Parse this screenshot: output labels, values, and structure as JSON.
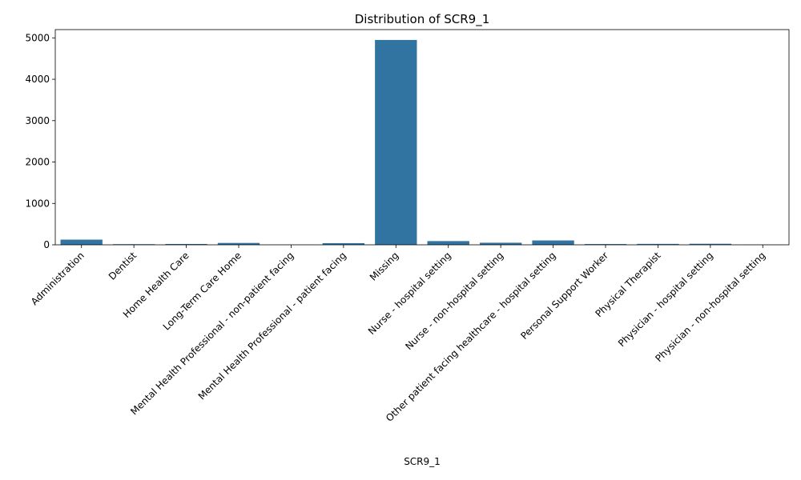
{
  "chart_data": {
    "type": "bar",
    "title": "Distribution of SCR9_1",
    "xlabel": "SCR9_1",
    "ylabel": "",
    "categories": [
      "Administration",
      "Dentist",
      "Home Health Care",
      "Long-Term Care Home",
      "Mental Health Professional - non-patient facing",
      "Mental Health Professional - patient facing",
      "Missing",
      "Nurse - hospital setting",
      "Nurse - non-hospital setting",
      "Other patient facing healthcare - hospital setting",
      "Personal Support Worker",
      "Physical Therapist",
      "Physician - hospital setting",
      "Physician - non-hospital setting"
    ],
    "values": [
      125,
      15,
      20,
      45,
      3,
      40,
      4950,
      90,
      50,
      105,
      18,
      22,
      25,
      4
    ],
    "ylim": [
      0,
      5200
    ],
    "yticks": [
      0,
      1000,
      2000,
      3000,
      4000,
      5000
    ],
    "bar_color": "#3274a1",
    "grid": false
  }
}
